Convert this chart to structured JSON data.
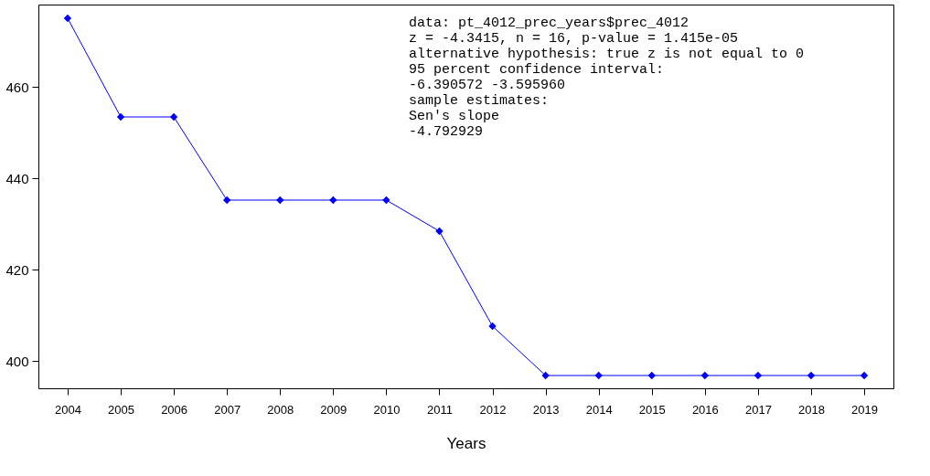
{
  "chart_data": {
    "type": "line",
    "xlabel": "Years",
    "categories": [
      "2004",
      "2005",
      "2006",
      "2007",
      "2008",
      "2009",
      "2010",
      "2011",
      "2012",
      "2013",
      "2014",
      "2015",
      "2016",
      "2017",
      "2018",
      "2019"
    ],
    "series": [
      {
        "color": "#0000ff",
        "values": [
          475,
          453.4,
          453.4,
          435.2,
          435.2,
          435.2,
          435.2,
          428.4,
          407.6,
          396.8,
          396.8,
          396.8,
          396.8,
          396.8,
          396.8,
          396.8
        ]
      }
    ],
    "ylim": [
      394,
      478
    ],
    "yticks": [
      400,
      420,
      440,
      460
    ],
    "grid": false,
    "marker": "diamond",
    "line_style": "solid",
    "annotations": [
      "data:  pt_4012_prec_years$prec_4012",
      "z = -4.3415, n = 16, p-value = 1.415e-05",
      "alternative hypothesis: true z is not equal to 0",
      "95 percent confidence interval:",
      " -6.390572 -3.595960",
      "sample estimates:",
      "Sen's slope",
      "  -4.792929"
    ]
  }
}
